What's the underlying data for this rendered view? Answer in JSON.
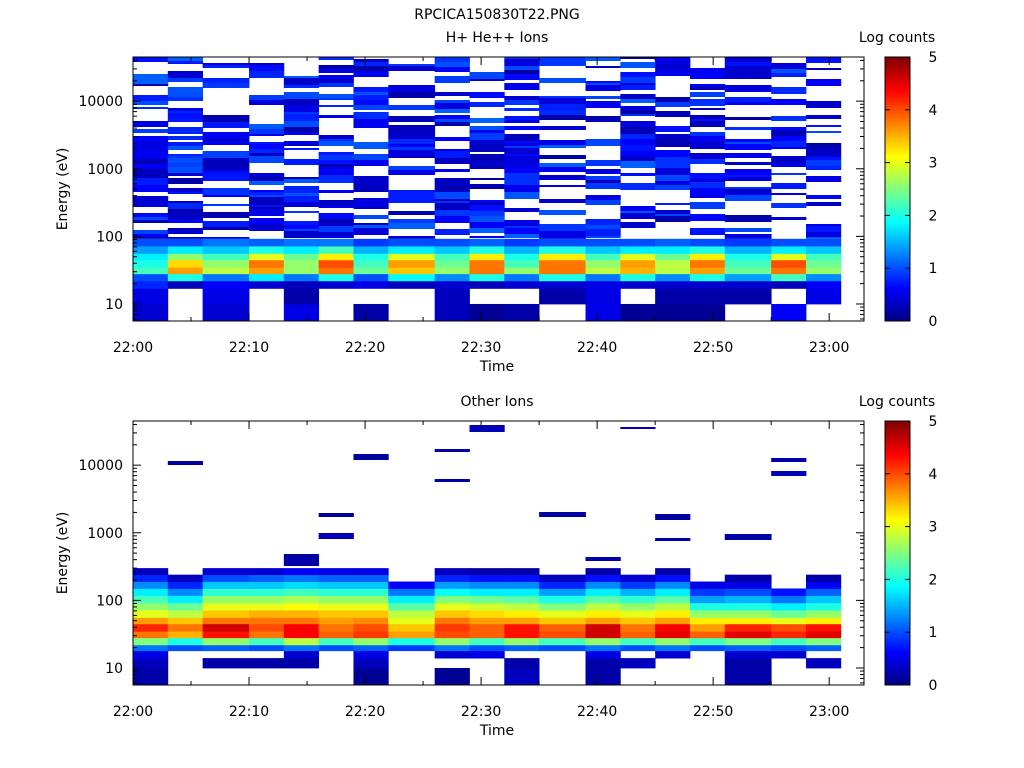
{
  "figure": {
    "title": "RPCICA150830T22.PNG"
  },
  "chart_data": [
    {
      "type": "heatmap",
      "title": "H+ He++ Ions",
      "xlabel": "Time",
      "ylabel": "Energy (eV)",
      "yscale": "log",
      "ylim": [
        5.6,
        45000
      ],
      "xlim": [
        "22:00",
        "23:03"
      ],
      "xticks": [
        "22:00",
        "22:10",
        "22:20",
        "22:30",
        "22:40",
        "22:50",
        "23:00"
      ],
      "yticks": [
        {
          "value": 10,
          "label": "10"
        },
        {
          "value": 100,
          "label": "100"
        },
        {
          "value": 1000,
          "label": "1000"
        },
        {
          "value": 10000,
          "label": "10000"
        }
      ],
      "colorbar": {
        "label": "Log counts",
        "range": [
          0,
          5
        ],
        "ticks": [
          "0",
          "1",
          "2",
          "3",
          "4",
          "5"
        ]
      },
      "time_bins": [
        "22:00",
        "22:03",
        "22:06",
        "22:10",
        "22:13",
        "22:16",
        "22:19",
        "22:22",
        "22:26",
        "22:29",
        "22:32",
        "22:35",
        "22:39",
        "22:42",
        "22:45",
        "22:48",
        "22:51",
        "22:55",
        "22:58",
        "23:01"
      ],
      "energy_bands": [
        {
          "range_eV": [
            5.6,
            10
          ],
          "log_counts": [
            0.4,
            null,
            0.4,
            null,
            0.5,
            null,
            0.2,
            null,
            0.3,
            0.1,
            0.2,
            null,
            0.5,
            0.1,
            0.1,
            0.1,
            null,
            0.6,
            null
          ]
        },
        {
          "range_eV": [
            10,
            17
          ],
          "log_counts": [
            0.5,
            null,
            0.5,
            null,
            0.2,
            null,
            null,
            null,
            0.3,
            null,
            null,
            0.2,
            0.5,
            null,
            0.2,
            0.2,
            0.2,
            null,
            0.5
          ]
        },
        {
          "range_eV": [
            17,
            22
          ],
          "log_counts": [
            0.8,
            0.3,
            0.6,
            0.4,
            0.3,
            0.4,
            0.5,
            0.3,
            0.4,
            0.3,
            0.4,
            0.4,
            0.5,
            0.4,
            0.4,
            0.4,
            0.4,
            0.3,
            0.6
          ]
        },
        {
          "range_eV": [
            22,
            28
          ],
          "log_counts": [
            1.0,
            2.0,
            1.2,
            1.8,
            1.2,
            2.0,
            1.0,
            1.9,
            1.3,
            2.0,
            1.2,
            2.0,
            1.2,
            2.0,
            1.3,
            2.0,
            1.4,
            2.2,
            1.3
          ]
        },
        {
          "range_eV": [
            28,
            35
          ],
          "log_counts": [
            2.2,
            3.6,
            2.8,
            3.6,
            2.6,
            3.8,
            2.4,
            3.4,
            2.6,
            3.8,
            2.6,
            3.8,
            2.8,
            3.5,
            2.8,
            3.6,
            2.4,
            3.8,
            2.6
          ]
        },
        {
          "range_eV": [
            35,
            45
          ],
          "log_counts": [
            2.0,
            3.3,
            2.6,
            3.8,
            2.6,
            4.0,
            2.2,
            3.6,
            2.4,
            3.8,
            2.2,
            3.8,
            2.6,
            3.6,
            2.8,
            3.8,
            2.2,
            4.0,
            2.4
          ]
        },
        {
          "range_eV": [
            45,
            56
          ],
          "log_counts": [
            1.8,
            2.6,
            2.2,
            3.0,
            2.4,
            3.2,
            2.0,
            3.0,
            2.2,
            3.2,
            2.0,
            3.2,
            2.2,
            3.0,
            2.4,
            3.2,
            2.0,
            3.0,
            2.2
          ]
        },
        {
          "range_eV": [
            56,
            72
          ],
          "log_counts": [
            1.4,
            1.8,
            1.6,
            2.0,
            1.8,
            2.2,
            1.5,
            1.8,
            1.6,
            2.0,
            1.5,
            2.0,
            1.6,
            1.8,
            1.8,
            2.0,
            1.5,
            1.8,
            1.6
          ]
        },
        {
          "range_eV": [
            72,
            92
          ],
          "log_counts": [
            1.0,
            1.0,
            1.2,
            1.1,
            1.2,
            1.2,
            0.9,
            1.0,
            1.0,
            1.1,
            0.9,
            1.0,
            1.0,
            1.0,
            1.1,
            1.0,
            0.9,
            1.0,
            1.0
          ]
        }
      ],
      "upper_energies_note": "sparse noise counts, log counts about 0.2 to 1.1"
    },
    {
      "type": "heatmap",
      "title": "Other Ions",
      "xlabel": "Time",
      "ylabel": "Energy (eV)",
      "yscale": "log",
      "ylim": [
        5.6,
        45000
      ],
      "xlim": [
        "22:00",
        "23:03"
      ],
      "xticks": [
        "22:00",
        "22:10",
        "22:20",
        "22:30",
        "22:40",
        "22:50",
        "23:00"
      ],
      "yticks": [
        {
          "value": 10,
          "label": "10"
        },
        {
          "value": 100,
          "label": "100"
        },
        {
          "value": 1000,
          "label": "1000"
        },
        {
          "value": 10000,
          "label": "10000"
        }
      ],
      "colorbar": {
        "label": "Log counts",
        "range": [
          0,
          5
        ],
        "ticks": [
          "0",
          "1",
          "2",
          "3",
          "4",
          "5"
        ]
      },
      "time_bins": [
        "22:00",
        "22:03",
        "22:06",
        "22:10",
        "22:13",
        "22:16",
        "22:19",
        "22:22",
        "22:26",
        "22:29",
        "22:32",
        "22:35",
        "22:39",
        "22:42",
        "22:45",
        "22:48",
        "22:51",
        "22:55",
        "22:58",
        "23:01"
      ],
      "energy_bands": [
        {
          "range_eV": [
            5.6,
            10
          ],
          "log_counts": [
            0.2,
            null,
            null,
            null,
            null,
            null,
            0.1,
            null,
            0.1,
            null,
            0.3,
            null,
            0.2,
            null,
            null,
            null,
            0.2,
            null,
            null
          ]
        },
        {
          "range_eV": [
            10,
            14
          ],
          "log_counts": [
            0.3,
            null,
            0.2,
            0.2,
            0.2,
            null,
            0.3,
            null,
            null,
            null,
            0.2,
            null,
            0.2,
            0.3,
            null,
            null,
            0.2,
            null,
            0.3
          ]
        },
        {
          "range_eV": [
            14,
            18
          ],
          "log_counts": [
            0.5,
            null,
            null,
            null,
            0.4,
            null,
            0.5,
            null,
            0.4,
            0.5,
            null,
            null,
            0.5,
            null,
            0.4,
            null,
            0.4,
            0.4,
            null
          ]
        },
        {
          "range_eV": [
            18,
            22
          ],
          "log_counts": [
            1.2,
            1.0,
            1.1,
            1.0,
            1.2,
            1.0,
            1.1,
            0.9,
            1.2,
            1.0,
            1.1,
            1.0,
            1.2,
            1.0,
            1.2,
            1.0,
            1.1,
            1.0,
            1.1
          ]
        },
        {
          "range_eV": [
            22,
            28
          ],
          "log_counts": [
            2.5,
            2.0,
            2.6,
            2.2,
            2.8,
            2.2,
            2.6,
            2.0,
            2.6,
            2.2,
            2.6,
            2.2,
            2.6,
            2.2,
            2.6,
            2.2,
            2.5,
            2.2,
            2.5
          ]
        },
        {
          "range_eV": [
            28,
            35
          ],
          "log_counts": [
            3.8,
            3.5,
            4.3,
            3.8,
            4.4,
            3.9,
            4.1,
            3.6,
            4.0,
            3.9,
            4.3,
            4.0,
            4.6,
            3.9,
            4.5,
            3.9,
            4.5,
            4.2,
            4.5
          ]
        },
        {
          "range_eV": [
            35,
            45
          ],
          "log_counts": [
            4.2,
            3.8,
            4.6,
            4.0,
            4.4,
            3.8,
            4.0,
            3.4,
            4.1,
            3.9,
            4.3,
            3.9,
            4.6,
            3.8,
            4.4,
            3.6,
            4.2,
            4.0,
            4.3
          ]
        },
        {
          "range_eV": [
            45,
            56
          ],
          "log_counts": [
            3.6,
            3.4,
            3.8,
            3.8,
            3.8,
            3.6,
            3.7,
            3.0,
            3.8,
            3.6,
            3.6,
            3.4,
            3.6,
            3.4,
            3.6,
            3.2,
            3.2,
            3.0,
            3.2
          ]
        },
        {
          "range_eV": [
            56,
            72
          ],
          "log_counts": [
            3.0,
            2.8,
            3.4,
            3.5,
            3.5,
            3.4,
            3.4,
            2.8,
            3.4,
            3.3,
            3.2,
            3.0,
            3.2,
            3.0,
            3.2,
            2.6,
            2.6,
            2.4,
            2.6
          ]
        },
        {
          "range_eV": [
            72,
            92
          ],
          "log_counts": [
            2.6,
            2.4,
            3.0,
            3.0,
            3.1,
            3.0,
            3.0,
            2.3,
            3.0,
            2.9,
            2.8,
            2.5,
            2.8,
            2.6,
            2.8,
            2.0,
            2.0,
            1.8,
            2.0
          ]
        },
        {
          "range_eV": [
            92,
            118
          ],
          "log_counts": [
            2.2,
            1.8,
            2.6,
            2.6,
            2.7,
            2.6,
            2.6,
            1.8,
            2.5,
            2.4,
            2.3,
            2.0,
            2.3,
            2.1,
            2.3,
            1.4,
            1.5,
            1.2,
            1.6
          ]
        },
        {
          "range_eV": [
            118,
            150
          ],
          "log_counts": [
            1.8,
            1.3,
            2.1,
            2.1,
            2.2,
            2.1,
            2.1,
            1.2,
            1.9,
            1.8,
            1.8,
            1.4,
            1.8,
            1.5,
            1.8,
            0.9,
            1.0,
            0.7,
            1.1
          ]
        },
        {
          "range_eV": [
            150,
            190
          ],
          "log_counts": [
            1.3,
            0.8,
            1.6,
            1.6,
            1.7,
            1.6,
            1.6,
            0.6,
            1.4,
            1.3,
            1.3,
            0.8,
            1.3,
            0.9,
            1.3,
            0.5,
            0.5,
            null,
            0.6
          ]
        },
        {
          "range_eV": [
            190,
            240
          ],
          "log_counts": [
            0.8,
            0.3,
            1.0,
            1.1,
            1.2,
            1.1,
            1.1,
            null,
            0.8,
            0.7,
            0.7,
            0.3,
            0.7,
            0.4,
            0.7,
            null,
            0.2,
            null,
            0.2
          ]
        },
        {
          "range_eV": [
            240,
            300
          ],
          "log_counts": [
            0.3,
            null,
            0.4,
            0.4,
            0.6,
            0.5,
            0.5,
            null,
            0.3,
            0.2,
            0.2,
            null,
            0.2,
            null,
            0.2,
            null,
            null,
            null,
            null
          ]
        }
      ],
      "upper_energies_note": "isolated dark-blue counts, log counts about 0.2"
    }
  ]
}
